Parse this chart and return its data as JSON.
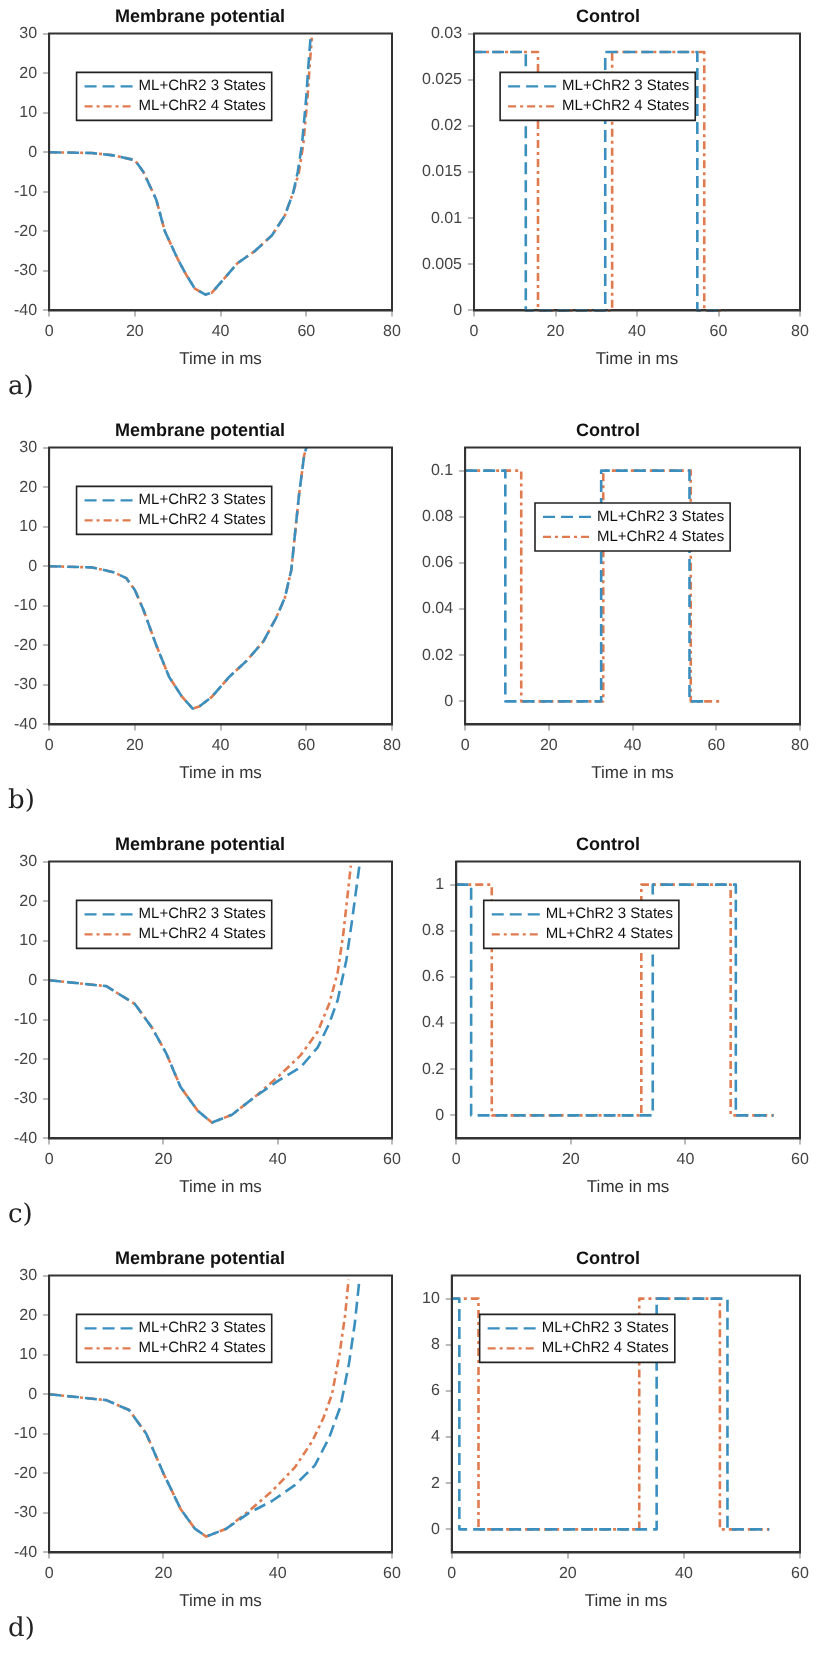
{
  "chart_data": [
    {
      "type": "line",
      "title": "Membrane potential",
      "xlabel": "Time in ms",
      "xlim": [
        0,
        80
      ],
      "ylim": [
        -40,
        30
      ],
      "xticks": [
        0,
        20,
        40,
        60,
        80
      ],
      "yticks": [
        -40,
        -30,
        -20,
        -10,
        0,
        10,
        20,
        30
      ],
      "legend": "top left",
      "grid": false,
      "annotations": [
        "a)"
      ],
      "series": [
        {
          "name": "ML+ChR2 3 States",
          "color": "#3a8fbf",
          "line_style": "dashed",
          "x": [
            0,
            10,
            15,
            20,
            22,
            25,
            27,
            30,
            32,
            34,
            36.5,
            38,
            40,
            44,
            48,
            52,
            55,
            57,
            58,
            59,
            60,
            60.5,
            61
          ],
          "values": [
            0,
            -0.2,
            -0.8,
            -2,
            -5,
            -12,
            -20,
            -27,
            -31,
            -34.5,
            -36,
            -35.5,
            -33,
            -28,
            -25,
            -21,
            -16,
            -10,
            -5,
            2,
            14,
            22,
            29
          ]
        },
        {
          "name": "ML+ChR2 4 States",
          "color": "#e07b50",
          "line_style": "dotted",
          "x": [
            0,
            10,
            15,
            20,
            22,
            25,
            27,
            30,
            32,
            34,
            36.5,
            38,
            40,
            44,
            48,
            52,
            55,
            57,
            58.3,
            59.3,
            60.3,
            60.8,
            61.3
          ],
          "values": [
            0,
            -0.2,
            -0.8,
            -2,
            -5,
            -12,
            -20,
            -27,
            -31,
            -34.5,
            -36,
            -35.5,
            -33,
            -28,
            -25,
            -21,
            -16,
            -10,
            -5,
            2,
            14,
            22,
            29
          ]
        }
      ]
    },
    {
      "type": "step",
      "title": "Control",
      "xlabel": "Time in ms",
      "xlim": [
        0,
        80
      ],
      "ylim": [
        0,
        0.03
      ],
      "xticks": [
        0,
        20,
        40,
        60,
        80
      ],
      "yticks": [
        0,
        0.005,
        0.01,
        0.015,
        0.02,
        0.025,
        0.03
      ],
      "legend": "top left",
      "grid": false,
      "series": [
        {
          "name": "ML+ChR2 3 States",
          "color": "#3a8fbf",
          "line_style": "dashed",
          "x": [
            0,
            12.7,
            32.2,
            54.8,
            60
          ],
          "values": [
            0.028,
            0,
            0.028,
            0,
            0
          ]
        },
        {
          "name": "ML+ChR2 4 States",
          "color": "#e07b50",
          "line_style": "dotted",
          "x": [
            0,
            15.7,
            33.9,
            56.5,
            61.7
          ],
          "values": [
            0.028,
            0,
            0.028,
            0,
            0
          ]
        }
      ]
    },
    {
      "type": "line",
      "title": "Membrane potential",
      "xlabel": "Time in ms",
      "xlim": [
        0,
        80
      ],
      "ylim": [
        -40,
        30
      ],
      "xticks": [
        0,
        20,
        40,
        60,
        80
      ],
      "yticks": [
        -40,
        -30,
        -20,
        -10,
        0,
        10,
        20,
        30
      ],
      "legend": "top left",
      "grid": false,
      "annotations": [
        "b)"
      ],
      "series": [
        {
          "name": "ML+ChR2 3 States",
          "color": "#3a8fbf",
          "line_style": "dashed",
          "x": [
            0,
            10,
            15,
            18,
            20,
            22,
            25,
            28,
            31,
            33.5,
            35,
            38,
            42,
            46,
            50,
            53,
            55,
            56.5,
            58.3,
            59.5,
            60
          ],
          "values": [
            0,
            -0.3,
            -1.5,
            -3,
            -6,
            -11,
            -20,
            -28,
            -33,
            -36,
            -35.5,
            -33,
            -28,
            -24,
            -19,
            -13,
            -8,
            -1,
            18,
            28,
            30
          ]
        },
        {
          "name": "ML+ChR2 4 States",
          "color": "#e07b50",
          "line_style": "dotted",
          "x": [
            0,
            10,
            15,
            18,
            20,
            22,
            25,
            28,
            31,
            33.5,
            35,
            38,
            42,
            46,
            50,
            53,
            55,
            56.5,
            58.3,
            59.5,
            60
          ],
          "values": [
            0,
            -0.3,
            -1.5,
            -3,
            -6,
            -11,
            -20,
            -28,
            -33,
            -36,
            -35.5,
            -33,
            -28,
            -24,
            -19,
            -13,
            -8,
            -1,
            18,
            28,
            30
          ]
        }
      ]
    },
    {
      "type": "step",
      "title": "Control",
      "xlabel": "Time in ms",
      "xlim": [
        0,
        80
      ],
      "ylim": [
        -0.01,
        0.11
      ],
      "xticks": [
        0,
        20,
        40,
        60,
        80
      ],
      "yticks": [
        0,
        0.02,
        0.04,
        0.06,
        0.08,
        0.1
      ],
      "legend": "top",
      "grid": false,
      "series": [
        {
          "name": "ML+ChR2 3 States",
          "color": "#3a8fbf",
          "line_style": "dashed",
          "x": [
            0,
            9.6,
            32.5,
            53.6,
            57.4
          ],
          "values": [
            0.1,
            0,
            0.1,
            0,
            0
          ]
        },
        {
          "name": "ML+ChR2 4 States",
          "color": "#e07b50",
          "line_style": "dotted",
          "x": [
            0,
            13.4,
            33,
            53.9,
            60.9
          ],
          "values": [
            0.1,
            0,
            0.1,
            0,
            0
          ]
        }
      ]
    },
    {
      "type": "line",
      "title": "Membrane potential",
      "xlabel": "Time in ms",
      "xlim": [
        0,
        60
      ],
      "ylim": [
        -40,
        30
      ],
      "xticks": [
        0,
        20,
        40,
        60
      ],
      "yticks": [
        -40,
        -30,
        -20,
        -10,
        0,
        10,
        20,
        30
      ],
      "legend": "top left",
      "grid": false,
      "annotations": [
        "c)"
      ],
      "series": [
        {
          "name": "ML+ChR2 3 States",
          "color": "#3a8fbf",
          "line_style": "dashed",
          "x": [
            0,
            10,
            15,
            18,
            20.5,
            23,
            26,
            28.5,
            32,
            36,
            40,
            44,
            47,
            49,
            50.5,
            52,
            53,
            54.3
          ],
          "values": [
            0,
            -1.5,
            -6,
            -12,
            -18.5,
            -27,
            -33,
            -36,
            -34,
            -29.5,
            -25.5,
            -22,
            -17,
            -11,
            -5,
            5,
            15,
            29
          ]
        },
        {
          "name": "ML+ChR2 4 States",
          "color": "#e07b50",
          "line_style": "dotted",
          "x": [
            0,
            10,
            15,
            18,
            20.5,
            23,
            26,
            28.5,
            32,
            36,
            40,
            44,
            47,
            49,
            50.5,
            51.5,
            52.8
          ],
          "values": [
            0,
            -1.5,
            -6,
            -12,
            -18.5,
            -27,
            -33,
            -36,
            -34,
            -29.5,
            -24.5,
            -19,
            -13,
            -6,
            2,
            12,
            29
          ]
        }
      ]
    },
    {
      "type": "step",
      "title": "Control",
      "xlabel": "Time in ms",
      "xlim": [
        0,
        60
      ],
      "ylim": [
        -0.1,
        1.1
      ],
      "xticks": [
        0,
        20,
        40,
        60
      ],
      "yticks": [
        0,
        0.2,
        0.4,
        0.6,
        0.8,
        1
      ],
      "legend": "top left",
      "grid": false,
      "series": [
        {
          "name": "ML+ChR2 3 States",
          "color": "#3a8fbf",
          "line_style": "dashed",
          "x": [
            0,
            2.6,
            34.3,
            48.8,
            55.4
          ],
          "values": [
            1,
            0,
            1,
            0,
            0
          ]
        },
        {
          "name": "ML+ChR2 4 States",
          "color": "#e07b50",
          "line_style": "dotted",
          "x": [
            0,
            6.2,
            32.3,
            47.9,
            55.4
          ],
          "values": [
            1,
            0,
            1,
            0,
            0
          ]
        }
      ]
    },
    {
      "type": "line",
      "title": "Membrane potential",
      "xlabel": "Time in ms",
      "xlim": [
        0,
        60
      ],
      "ylim": [
        -40,
        30
      ],
      "xticks": [
        0,
        20,
        40,
        60
      ],
      "yticks": [
        -40,
        -30,
        -20,
        -10,
        0,
        10,
        20,
        30
      ],
      "legend": "top left",
      "grid": false,
      "annotations": [
        "d)"
      ],
      "series": [
        {
          "name": "ML+ChR2 3 States",
          "color": "#3a8fbf",
          "line_style": "dashed",
          "x": [
            0,
            10,
            14,
            17,
            20,
            23,
            25.5,
            27.5,
            31,
            35,
            39,
            43,
            46.5,
            49,
            51,
            52.5,
            53.5,
            54.3
          ],
          "values": [
            0,
            -1.5,
            -4,
            -10,
            -20,
            -29,
            -34,
            -36,
            -34,
            -30,
            -27,
            -23,
            -18,
            -11,
            -3,
            8,
            18,
            29
          ]
        },
        {
          "name": "ML+ChR2 4 States",
          "color": "#e07b50",
          "line_style": "dotted",
          "x": [
            0,
            10,
            14,
            17,
            20,
            23,
            25.5,
            27.5,
            31,
            35,
            39,
            43,
            46,
            48,
            49.5,
            50.8,
            51.8,
            52.4
          ],
          "values": [
            0,
            -1.5,
            -4,
            -10,
            -20,
            -29,
            -34,
            -36,
            -34,
            -29.5,
            -24.5,
            -18.5,
            -12,
            -6,
            0,
            10,
            20,
            29
          ]
        }
      ]
    },
    {
      "type": "step",
      "title": "Control",
      "xlabel": "Time in ms",
      "xlim": [
        0,
        60
      ],
      "ylim": [
        -1,
        11
      ],
      "xticks": [
        0,
        20,
        40,
        60
      ],
      "yticks": [
        0,
        2,
        4,
        6,
        8,
        10
      ],
      "legend": "top left",
      "grid": false,
      "series": [
        {
          "name": "ML+ChR2 3 States",
          "color": "#3a8fbf",
          "line_style": "dashed",
          "x": [
            0,
            1.3,
            35.3,
            47.5,
            54.7
          ],
          "values": [
            10,
            0,
            10,
            0,
            0
          ]
        },
        {
          "name": "ML+ChR2 4 States",
          "color": "#e07b50",
          "line_style": "dotted",
          "x": [
            0,
            4.6,
            32.3,
            46.2,
            54.7
          ],
          "values": [
            10,
            0,
            10,
            0,
            0
          ]
        }
      ]
    }
  ]
}
